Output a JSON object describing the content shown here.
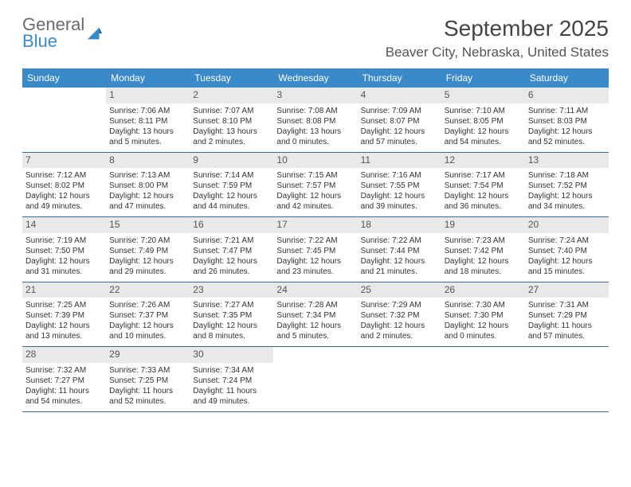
{
  "logo": {
    "word1": "General",
    "word2": "Blue"
  },
  "title": "September 2025",
  "location": "Beaver City, Nebraska, United States",
  "day_names": [
    "Sunday",
    "Monday",
    "Tuesday",
    "Wednesday",
    "Thursday",
    "Friday",
    "Saturday"
  ],
  "colors": {
    "header_bg": "#3a8ac9",
    "header_text": "#ffffff",
    "daynum_bg": "#e9e9e9",
    "border": "#3a6a9c",
    "logo_gray": "#6b6b6b",
    "logo_blue": "#3a8ac9"
  },
  "weeks": [
    [
      {
        "day": "",
        "sunrise": "",
        "sunset": "",
        "daylight": ""
      },
      {
        "day": "1",
        "sunrise": "Sunrise: 7:06 AM",
        "sunset": "Sunset: 8:11 PM",
        "daylight": "Daylight: 13 hours and 5 minutes."
      },
      {
        "day": "2",
        "sunrise": "Sunrise: 7:07 AM",
        "sunset": "Sunset: 8:10 PM",
        "daylight": "Daylight: 13 hours and 2 minutes."
      },
      {
        "day": "3",
        "sunrise": "Sunrise: 7:08 AM",
        "sunset": "Sunset: 8:08 PM",
        "daylight": "Daylight: 13 hours and 0 minutes."
      },
      {
        "day": "4",
        "sunrise": "Sunrise: 7:09 AM",
        "sunset": "Sunset: 8:07 PM",
        "daylight": "Daylight: 12 hours and 57 minutes."
      },
      {
        "day": "5",
        "sunrise": "Sunrise: 7:10 AM",
        "sunset": "Sunset: 8:05 PM",
        "daylight": "Daylight: 12 hours and 54 minutes."
      },
      {
        "day": "6",
        "sunrise": "Sunrise: 7:11 AM",
        "sunset": "Sunset: 8:03 PM",
        "daylight": "Daylight: 12 hours and 52 minutes."
      }
    ],
    [
      {
        "day": "7",
        "sunrise": "Sunrise: 7:12 AM",
        "sunset": "Sunset: 8:02 PM",
        "daylight": "Daylight: 12 hours and 49 minutes."
      },
      {
        "day": "8",
        "sunrise": "Sunrise: 7:13 AM",
        "sunset": "Sunset: 8:00 PM",
        "daylight": "Daylight: 12 hours and 47 minutes."
      },
      {
        "day": "9",
        "sunrise": "Sunrise: 7:14 AM",
        "sunset": "Sunset: 7:59 PM",
        "daylight": "Daylight: 12 hours and 44 minutes."
      },
      {
        "day": "10",
        "sunrise": "Sunrise: 7:15 AM",
        "sunset": "Sunset: 7:57 PM",
        "daylight": "Daylight: 12 hours and 42 minutes."
      },
      {
        "day": "11",
        "sunrise": "Sunrise: 7:16 AM",
        "sunset": "Sunset: 7:55 PM",
        "daylight": "Daylight: 12 hours and 39 minutes."
      },
      {
        "day": "12",
        "sunrise": "Sunrise: 7:17 AM",
        "sunset": "Sunset: 7:54 PM",
        "daylight": "Daylight: 12 hours and 36 minutes."
      },
      {
        "day": "13",
        "sunrise": "Sunrise: 7:18 AM",
        "sunset": "Sunset: 7:52 PM",
        "daylight": "Daylight: 12 hours and 34 minutes."
      }
    ],
    [
      {
        "day": "14",
        "sunrise": "Sunrise: 7:19 AM",
        "sunset": "Sunset: 7:50 PM",
        "daylight": "Daylight: 12 hours and 31 minutes."
      },
      {
        "day": "15",
        "sunrise": "Sunrise: 7:20 AM",
        "sunset": "Sunset: 7:49 PM",
        "daylight": "Daylight: 12 hours and 29 minutes."
      },
      {
        "day": "16",
        "sunrise": "Sunrise: 7:21 AM",
        "sunset": "Sunset: 7:47 PM",
        "daylight": "Daylight: 12 hours and 26 minutes."
      },
      {
        "day": "17",
        "sunrise": "Sunrise: 7:22 AM",
        "sunset": "Sunset: 7:45 PM",
        "daylight": "Daylight: 12 hours and 23 minutes."
      },
      {
        "day": "18",
        "sunrise": "Sunrise: 7:22 AM",
        "sunset": "Sunset: 7:44 PM",
        "daylight": "Daylight: 12 hours and 21 minutes."
      },
      {
        "day": "19",
        "sunrise": "Sunrise: 7:23 AM",
        "sunset": "Sunset: 7:42 PM",
        "daylight": "Daylight: 12 hours and 18 minutes."
      },
      {
        "day": "20",
        "sunrise": "Sunrise: 7:24 AM",
        "sunset": "Sunset: 7:40 PM",
        "daylight": "Daylight: 12 hours and 15 minutes."
      }
    ],
    [
      {
        "day": "21",
        "sunrise": "Sunrise: 7:25 AM",
        "sunset": "Sunset: 7:39 PM",
        "daylight": "Daylight: 12 hours and 13 minutes."
      },
      {
        "day": "22",
        "sunrise": "Sunrise: 7:26 AM",
        "sunset": "Sunset: 7:37 PM",
        "daylight": "Daylight: 12 hours and 10 minutes."
      },
      {
        "day": "23",
        "sunrise": "Sunrise: 7:27 AM",
        "sunset": "Sunset: 7:35 PM",
        "daylight": "Daylight: 12 hours and 8 minutes."
      },
      {
        "day": "24",
        "sunrise": "Sunrise: 7:28 AM",
        "sunset": "Sunset: 7:34 PM",
        "daylight": "Daylight: 12 hours and 5 minutes."
      },
      {
        "day": "25",
        "sunrise": "Sunrise: 7:29 AM",
        "sunset": "Sunset: 7:32 PM",
        "daylight": "Daylight: 12 hours and 2 minutes."
      },
      {
        "day": "26",
        "sunrise": "Sunrise: 7:30 AM",
        "sunset": "Sunset: 7:30 PM",
        "daylight": "Daylight: 12 hours and 0 minutes."
      },
      {
        "day": "27",
        "sunrise": "Sunrise: 7:31 AM",
        "sunset": "Sunset: 7:29 PM",
        "daylight": "Daylight: 11 hours and 57 minutes."
      }
    ],
    [
      {
        "day": "28",
        "sunrise": "Sunrise: 7:32 AM",
        "sunset": "Sunset: 7:27 PM",
        "daylight": "Daylight: 11 hours and 54 minutes."
      },
      {
        "day": "29",
        "sunrise": "Sunrise: 7:33 AM",
        "sunset": "Sunset: 7:25 PM",
        "daylight": "Daylight: 11 hours and 52 minutes."
      },
      {
        "day": "30",
        "sunrise": "Sunrise: 7:34 AM",
        "sunset": "Sunset: 7:24 PM",
        "daylight": "Daylight: 11 hours and 49 minutes."
      },
      {
        "day": "",
        "sunrise": "",
        "sunset": "",
        "daylight": ""
      },
      {
        "day": "",
        "sunrise": "",
        "sunset": "",
        "daylight": ""
      },
      {
        "day": "",
        "sunrise": "",
        "sunset": "",
        "daylight": ""
      },
      {
        "day": "",
        "sunrise": "",
        "sunset": "",
        "daylight": ""
      }
    ]
  ]
}
